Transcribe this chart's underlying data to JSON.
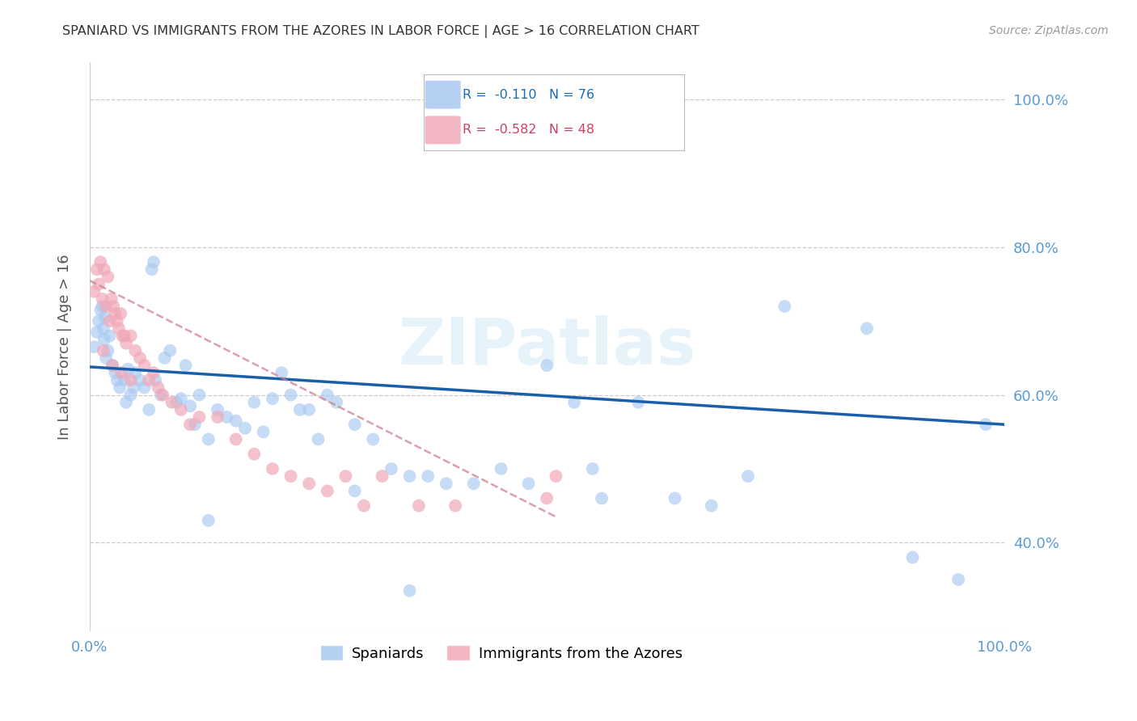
{
  "title": "SPANIARD VS IMMIGRANTS FROM THE AZORES IN LABOR FORCE | AGE > 16 CORRELATION CHART",
  "source": "Source: ZipAtlas.com",
  "ylabel": "In Labor Force | Age > 16",
  "xlim": [
    0.0,
    1.0
  ],
  "ylim": [
    0.28,
    1.05
  ],
  "background_color": "#ffffff",
  "grid_color": "#cccccc",
  "title_color": "#333333",
  "axis_color": "#5b9bd5",
  "watermark": "ZIPatlas",
  "spaniards_color": "#a8c8f0",
  "azores_color": "#f0a8b8",
  "trend_spaniards_color": "#1a5faa",
  "trend_azores_color": "#d08090",
  "spaniards_x": [
    0.005,
    0.008,
    0.01,
    0.012,
    0.014,
    0.015,
    0.016,
    0.017,
    0.018,
    0.02,
    0.022,
    0.025,
    0.028,
    0.03,
    0.033,
    0.038,
    0.04,
    0.042,
    0.045,
    0.048,
    0.05,
    0.055,
    0.06,
    0.065,
    0.068,
    0.072,
    0.078,
    0.082,
    0.088,
    0.095,
    0.1,
    0.105,
    0.11,
    0.115,
    0.12,
    0.13,
    0.14,
    0.15,
    0.16,
    0.17,
    0.18,
    0.19,
    0.2,
    0.21,
    0.22,
    0.23,
    0.24,
    0.25,
    0.26,
    0.27,
    0.29,
    0.31,
    0.33,
    0.35,
    0.37,
    0.39,
    0.42,
    0.45,
    0.48,
    0.5,
    0.53,
    0.56,
    0.6,
    0.64,
    0.68,
    0.72,
    0.76,
    0.85,
    0.9,
    0.95,
    0.98,
    0.07,
    0.13,
    0.29,
    0.35,
    0.55
  ],
  "spaniards_y": [
    0.665,
    0.685,
    0.7,
    0.715,
    0.72,
    0.69,
    0.675,
    0.705,
    0.65,
    0.66,
    0.68,
    0.64,
    0.63,
    0.62,
    0.61,
    0.62,
    0.59,
    0.635,
    0.6,
    0.61,
    0.63,
    0.62,
    0.61,
    0.58,
    0.77,
    0.62,
    0.6,
    0.65,
    0.66,
    0.59,
    0.595,
    0.64,
    0.585,
    0.56,
    0.6,
    0.54,
    0.58,
    0.57,
    0.565,
    0.555,
    0.59,
    0.55,
    0.595,
    0.63,
    0.6,
    0.58,
    0.58,
    0.54,
    0.6,
    0.59,
    0.56,
    0.54,
    0.5,
    0.49,
    0.49,
    0.48,
    0.48,
    0.5,
    0.48,
    0.64,
    0.59,
    0.46,
    0.59,
    0.46,
    0.45,
    0.49,
    0.72,
    0.69,
    0.38,
    0.35,
    0.56,
    0.78,
    0.43,
    0.47,
    0.335,
    0.5
  ],
  "azores_x": [
    0.005,
    0.008,
    0.01,
    0.012,
    0.014,
    0.016,
    0.018,
    0.02,
    0.022,
    0.024,
    0.026,
    0.028,
    0.03,
    0.032,
    0.034,
    0.036,
    0.038,
    0.04,
    0.045,
    0.05,
    0.055,
    0.06,
    0.065,
    0.07,
    0.075,
    0.08,
    0.09,
    0.1,
    0.11,
    0.12,
    0.14,
    0.16,
    0.18,
    0.2,
    0.22,
    0.24,
    0.26,
    0.28,
    0.3,
    0.32,
    0.36,
    0.4,
    0.5,
    0.51,
    0.015,
    0.025,
    0.035,
    0.045
  ],
  "azores_y": [
    0.74,
    0.77,
    0.75,
    0.78,
    0.73,
    0.77,
    0.72,
    0.76,
    0.7,
    0.73,
    0.72,
    0.71,
    0.7,
    0.69,
    0.71,
    0.68,
    0.68,
    0.67,
    0.68,
    0.66,
    0.65,
    0.64,
    0.62,
    0.63,
    0.61,
    0.6,
    0.59,
    0.58,
    0.56,
    0.57,
    0.57,
    0.54,
    0.52,
    0.5,
    0.49,
    0.48,
    0.47,
    0.49,
    0.45,
    0.49,
    0.45,
    0.45,
    0.46,
    0.49,
    0.66,
    0.64,
    0.63,
    0.62
  ],
  "trend_spaniards_x0": 0.0,
  "trend_spaniards_y0": 0.638,
  "trend_spaniards_x1": 1.0,
  "trend_spaniards_y1": 0.56,
  "trend_azores_x0": 0.0,
  "trend_azores_y0": 0.755,
  "trend_azores_x1": 0.51,
  "trend_azores_y1": 0.435,
  "legend_r1": "R =  -0.110   N = 76",
  "legend_r2": "R =  -0.582   N = 48",
  "legend_label1": "Spaniards",
  "legend_label2": "Immigrants from the Azores"
}
